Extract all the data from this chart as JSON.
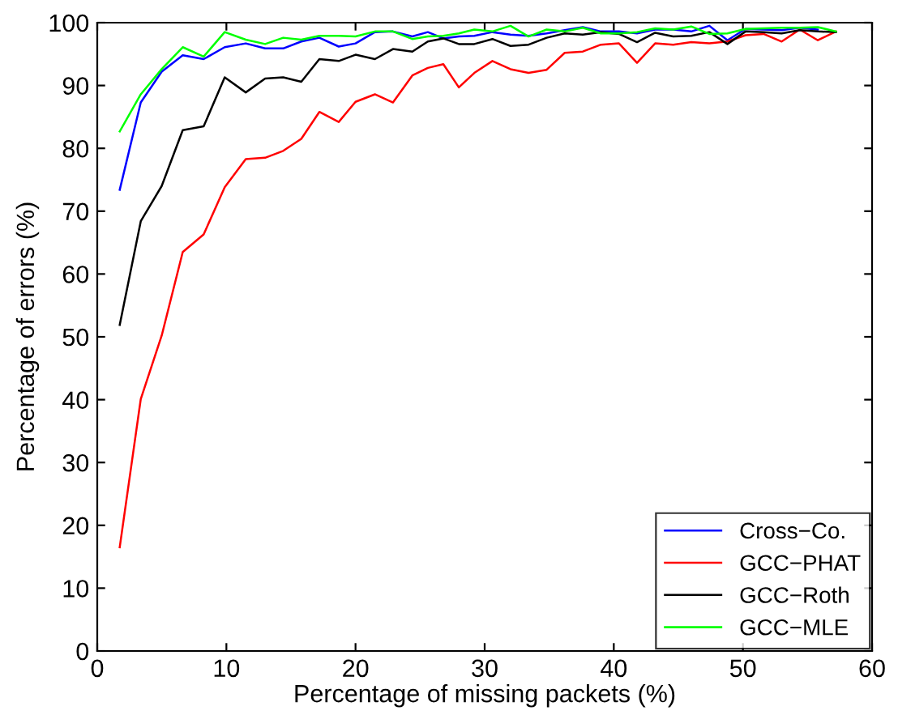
{
  "chart_data": {
    "type": "line",
    "xlabel": "Percentage of missing packets (%)",
    "ylabel": "Percentage of errors (%)",
    "x": [
      1.74,
      3.37,
      4.99,
      6.62,
      8.24,
      9.87,
      11.5,
      13.0,
      14.4,
      15.8,
      17.2,
      18.7,
      20.0,
      21.5,
      22.9,
      24.4,
      25.6,
      26.8,
      28.0,
      29.2,
      30.6,
      32.0,
      33.4,
      34.8,
      36.2,
      37.6,
      39.0,
      40.4,
      41.8,
      43.2,
      44.6,
      46.0,
      47.4,
      48.8,
      50.2,
      51.6,
      53.0,
      54.4,
      55.8,
      57.2
    ],
    "series": [
      {
        "name": "Cross−Co.",
        "color": "#0000ff",
        "values": [
          73.4,
          87.3,
          92.2,
          94.8,
          94.2,
          96.1,
          96.7,
          95.9,
          95.9,
          97.0,
          97.6,
          96.2,
          96.7,
          98.5,
          98.6,
          97.8,
          98.5,
          97.5,
          97.8,
          97.9,
          98.5,
          98.1,
          97.9,
          98.3,
          98.8,
          99.3,
          98.6,
          98.6,
          98.3,
          98.9,
          98.9,
          98.6,
          99.5,
          97.2,
          99.0,
          98.9,
          98.8,
          99.2,
          98.9,
          null
        ]
      },
      {
        "name": "GCC−PHAT",
        "color": "#ff0000",
        "values": [
          16.5,
          40.1,
          50.2,
          63.5,
          66.3,
          73.8,
          78.3,
          78.5,
          79.6,
          81.5,
          85.8,
          84.2,
          87.4,
          88.6,
          87.3,
          91.6,
          92.8,
          93.4,
          89.7,
          92.0,
          93.9,
          92.6,
          92.0,
          92.5,
          95.2,
          95.4,
          96.5,
          96.7,
          93.6,
          96.7,
          96.5,
          96.9,
          96.7,
          97.0,
          98.0,
          98.2,
          97.0,
          98.9,
          97.2,
          98.6
        ]
      },
      {
        "name": "GCC−Roth",
        "color": "#000000",
        "values": [
          51.9,
          68.4,
          74.0,
          82.9,
          83.5,
          91.3,
          88.9,
          91.1,
          91.3,
          90.6,
          94.2,
          93.9,
          94.9,
          94.2,
          95.8,
          95.4,
          97.0,
          97.5,
          96.6,
          96.6,
          97.4,
          96.3,
          96.5,
          97.6,
          98.3,
          98.1,
          98.5,
          98.2,
          96.9,
          98.4,
          97.8,
          97.9,
          98.5,
          96.6,
          98.6,
          98.5,
          98.3,
          98.8,
          98.6,
          98.5
        ]
      },
      {
        "name": "GCC−MLE",
        "color": "#00ff00",
        "values": [
          82.7,
          88.6,
          92.6,
          96.1,
          94.6,
          98.5,
          97.3,
          96.6,
          97.6,
          97.3,
          97.9,
          97.9,
          97.8,
          98.6,
          98.6,
          97.4,
          97.8,
          97.9,
          98.3,
          98.9,
          98.6,
          99.5,
          97.8,
          98.9,
          98.6,
          99.2,
          98.3,
          98.3,
          98.5,
          99.1,
          98.9,
          99.4,
          98.2,
          98.3,
          99.0,
          99.1,
          99.2,
          99.2,
          99.3,
          98.6
        ]
      }
    ],
    "xlim": [
      0,
      60
    ],
    "ylim": [
      0,
      100
    ],
    "xticks": [
      0,
      10,
      20,
      30,
      40,
      50,
      60
    ],
    "yticks": [
      0,
      10,
      20,
      30,
      40,
      50,
      60,
      70,
      80,
      90,
      100
    ],
    "grid": false,
    "legend": "bottom right",
    "marker": "none",
    "line_style": "solid"
  }
}
